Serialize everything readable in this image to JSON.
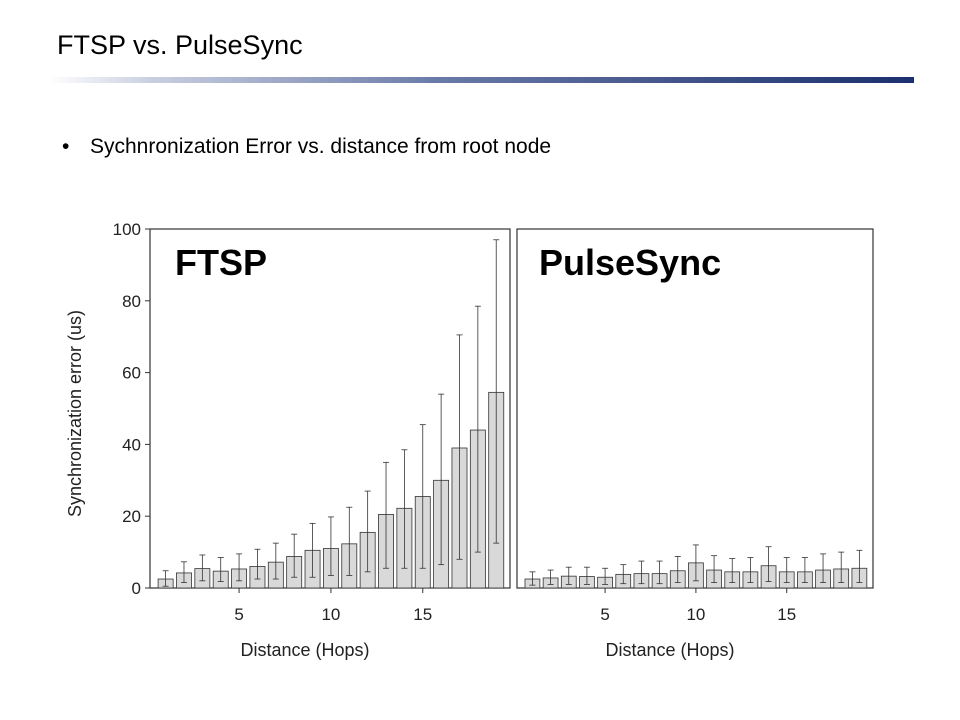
{
  "slide": {
    "title": "FTSP vs. PulseSync",
    "bullet": "Sychnronization Error vs. distance from root node",
    "accent_color": "#1d2f6e"
  },
  "chart_data": [
    {
      "type": "bar",
      "title": "FTSP",
      "xlabel": "Distance (Hops)",
      "ylabel": "Synchronization error (us)",
      "ylim": [
        0,
        100
      ],
      "yticks": [
        0,
        20,
        40,
        60,
        80,
        100
      ],
      "xticks": [
        5,
        10,
        15
      ],
      "x": [
        1,
        2,
        3,
        4,
        5,
        6,
        7,
        8,
        9,
        10,
        11,
        12,
        13,
        14,
        15,
        16,
        17,
        18,
        19
      ],
      "values": [
        2.5,
        4.2,
        5.4,
        4.7,
        5.3,
        6,
        7.2,
        8.8,
        10.5,
        11,
        12.3,
        15.5,
        20.5,
        22.2,
        25.5,
        30,
        39,
        44,
        54.5
      ],
      "error_upper": [
        4.8,
        7.3,
        9.2,
        8.5,
        9.5,
        10.8,
        12.5,
        15,
        18,
        19.8,
        22.5,
        27,
        35,
        38.5,
        45.5,
        54,
        70.5,
        78.5,
        97
      ],
      "error_lower": [
        0.5,
        1.5,
        2,
        1.8,
        2,
        2.5,
        2.5,
        3,
        3,
        3.5,
        3.5,
        4.5,
        5.5,
        5.5,
        5.5,
        6.5,
        8,
        10,
        12.5
      ],
      "grid": false
    },
    {
      "type": "bar",
      "title": "PulseSync",
      "xlabel": "Distance (Hops)",
      "ylabel": "",
      "ylim": [
        0,
        100
      ],
      "xticks": [
        5,
        10,
        15
      ],
      "x": [
        1,
        2,
        3,
        4,
        5,
        6,
        7,
        8,
        9,
        10,
        11,
        12,
        13,
        14,
        15,
        16,
        17,
        18,
        19
      ],
      "values": [
        2.5,
        2.8,
        3.3,
        3.2,
        3,
        3.8,
        4,
        4,
        4.8,
        7,
        5,
        4.5,
        4.5,
        6.2,
        4.5,
        4.5,
        5,
        5.3,
        5.5
      ],
      "error_upper": [
        4.5,
        5,
        5.8,
        5.8,
        5.5,
        6.5,
        7.5,
        7.5,
        8.8,
        12,
        9,
        8.2,
        8.5,
        11.5,
        8.5,
        8.5,
        9.5,
        10,
        10.5
      ],
      "error_lower": [
        0.8,
        1,
        1,
        1,
        1,
        1.2,
        1.2,
        1.2,
        1.5,
        2,
        1.5,
        1.5,
        1.5,
        1.8,
        1.5,
        1.5,
        1.5,
        1.5,
        1.5
      ],
      "grid": false
    }
  ]
}
